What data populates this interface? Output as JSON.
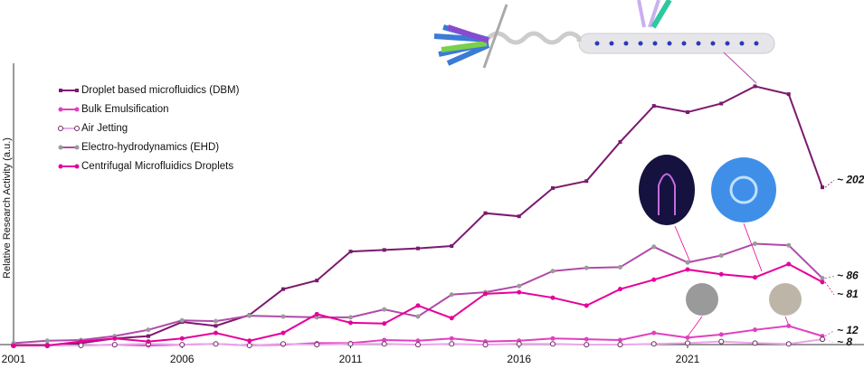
{
  "chart_data": {
    "type": "line",
    "y_label": "Relative Research Activity (a.u.)",
    "x": [
      2001,
      2002,
      2003,
      2004,
      2005,
      2006,
      2007,
      2008,
      2009,
      2010,
      2011,
      2012,
      2013,
      2014,
      2015,
      2016,
      2017,
      2018,
      2019,
      2020,
      2021,
      2022,
      2023,
      2024,
      2025
    ],
    "xlim": [
      2001,
      2025
    ],
    "xticks": [
      2001,
      2006,
      2011,
      2016,
      2021
    ],
    "ylim": [
      0,
      350
    ],
    "series": [
      {
        "name": "Droplet based microfluidics (DBM)",
        "color": "#7b1a6e",
        "marker": "square",
        "end_label": "~ 202",
        "values": [
          0,
          0,
          3,
          9,
          12,
          30,
          25,
          39,
          72,
          83,
          120,
          122,
          124,
          127,
          169,
          165,
          201,
          210,
          260,
          306,
          298,
          309,
          331,
          321,
          202
        ]
      },
      {
        "name": "Bulk Emulsification",
        "color": "#e040c0",
        "marker": "circle",
        "end_label": "~ 12",
        "values": [
          0,
          0,
          0,
          1,
          0,
          1,
          2,
          0,
          1,
          3,
          3,
          7,
          6,
          9,
          5,
          6,
          9,
          8,
          7,
          16,
          10,
          14,
          20,
          25,
          12
        ]
      },
      {
        "name": "Air Jetting",
        "color": "#eaa6ea",
        "marker": "hollow",
        "end_label": "~ 8",
        "values": [
          0,
          0,
          0,
          1,
          2,
          1,
          2,
          0,
          2,
          1,
          2,
          2,
          1,
          2,
          1,
          2,
          2,
          1,
          1,
          2,
          3,
          5,
          3,
          2,
          8
        ]
      },
      {
        "name": "Electro-hydrodynamics (EHD)",
        "color": "#b04aa8",
        "marker": "circle",
        "marker_color": "#9a9a9a",
        "end_label": "~ 86",
        "values": [
          3,
          6,
          7,
          12,
          20,
          32,
          31,
          38,
          37,
          36,
          36,
          46,
          37,
          65,
          68,
          76,
          95,
          99,
          100,
          126,
          106,
          115,
          130,
          128,
          86
        ]
      },
      {
        "name": "Centrifugal Microfluidics Droplets",
        "color": "#e6009a",
        "marker": "circle",
        "end_label": "~ 81",
        "values": [
          0,
          0,
          5,
          9,
          5,
          9,
          16,
          6,
          16,
          40,
          29,
          28,
          51,
          35,
          66,
          68,
          61,
          51,
          72,
          84,
          97,
          91,
          87,
          104,
          81
        ]
      }
    ]
  }
}
